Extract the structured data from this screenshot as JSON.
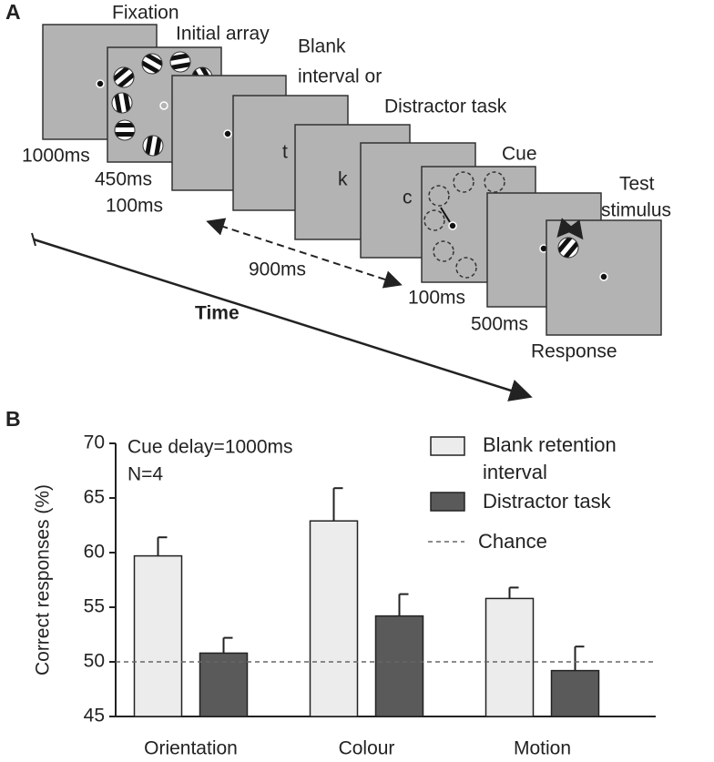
{
  "panel_a": {
    "panel_label": "A",
    "fixation": "Fixation",
    "fixation_time": "1000ms",
    "initial": "Initial array",
    "initial_time": "450ms",
    "blank_label": [
      "Blank",
      "interval or",
      "Distractor task"
    ],
    "blank_time": "100ms",
    "letters": [
      "t",
      "k",
      "c"
    ],
    "interval_time": "900ms",
    "cue": "Cue",
    "cue_time": "100ms",
    "delay_time": "500ms",
    "test_label": [
      "Test",
      "stimulus"
    ],
    "response": "Response",
    "time": "Time"
  },
  "chart_data": {
    "type": "bar",
    "panel_label": "B",
    "ylabel": "Correct responses (%)",
    "annotations": [
      "Cue delay=1000ms",
      "N=4"
    ],
    "categories": [
      "Orientation",
      "Colour",
      "Motion"
    ],
    "series": [
      {
        "name": "Blank retention interval",
        "color": "#ececec",
        "values": [
          59.7,
          62.9,
          55.8
        ],
        "errors": [
          1.7,
          3.0,
          1.0
        ]
      },
      {
        "name": "Distractor task",
        "color": "#5a5a5a",
        "values": [
          50.8,
          54.2,
          49.2
        ],
        "errors": [
          1.4,
          2.0,
          2.2
        ]
      }
    ],
    "chance": {
      "name": "Chance",
      "value": 50
    },
    "ylim": [
      45,
      70
    ],
    "yticks": [
      45,
      50,
      55,
      60,
      65,
      70
    ]
  }
}
